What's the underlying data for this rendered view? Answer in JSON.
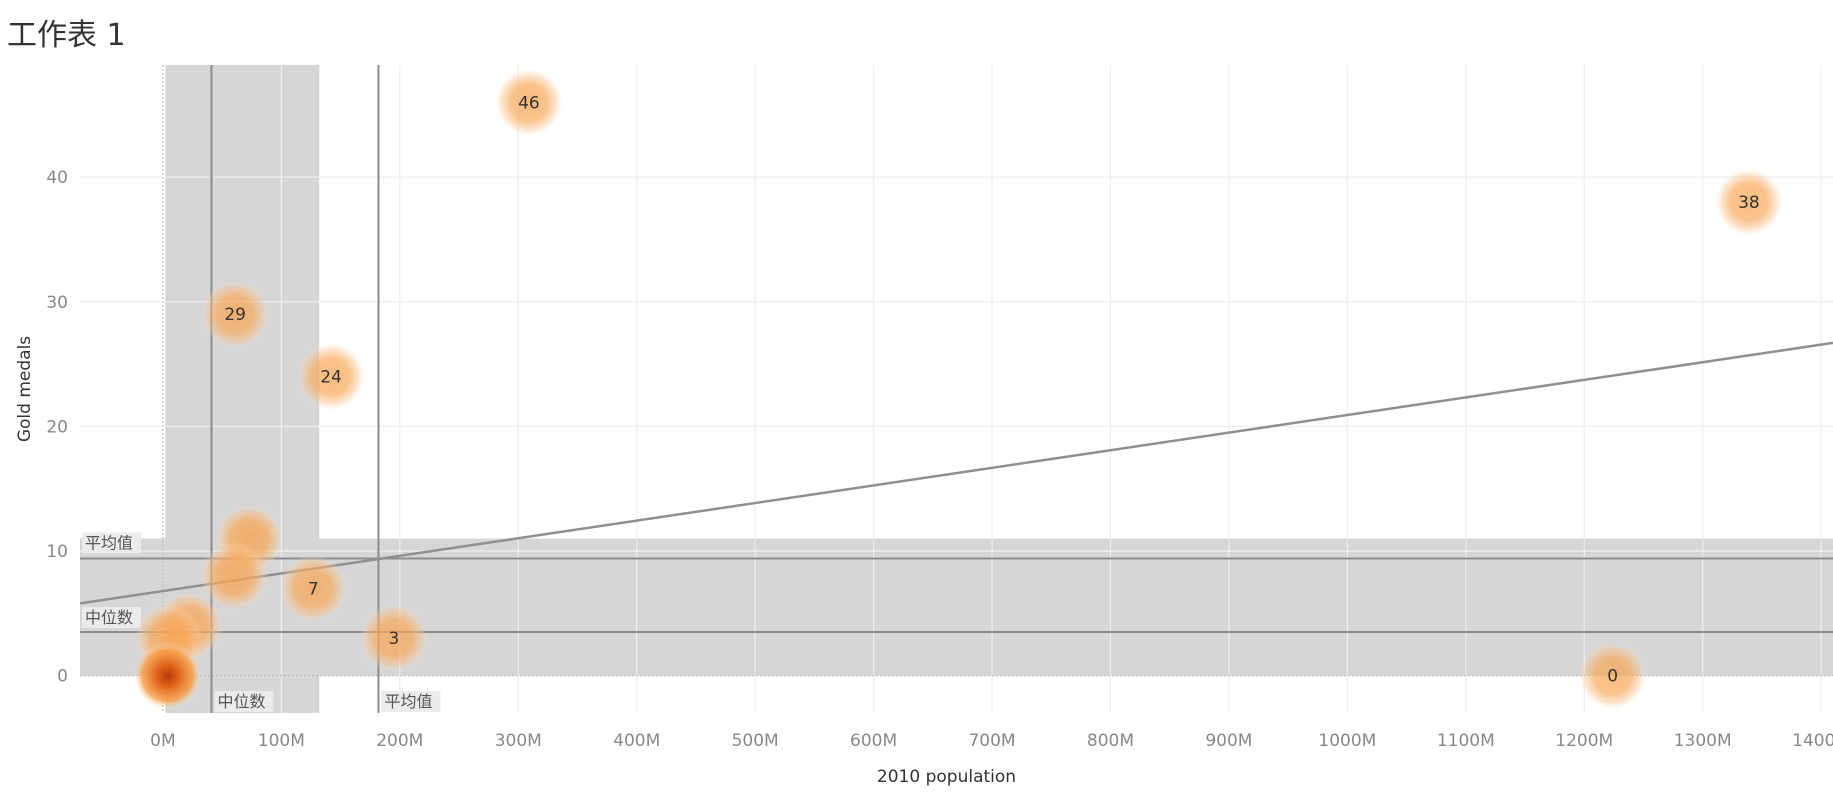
{
  "sheet_title": "工作表 1",
  "chart_data": {
    "type": "scatter",
    "title": "工作表 1",
    "xlabel": "2010 population",
    "ylabel": "Gold medals",
    "xlim": [
      -70,
      1410
    ],
    "ylim": [
      -3,
      49
    ],
    "x_unit": "M",
    "x_ticks": [
      0,
      100,
      200,
      300,
      400,
      500,
      600,
      700,
      800,
      900,
      1000,
      1100,
      1200,
      1300,
      1400
    ],
    "x_tick_labels": [
      "0M",
      "100M",
      "200M",
      "300M",
      "400M",
      "500M",
      "600M",
      "700M",
      "800M",
      "900M",
      "1000M",
      "1100M",
      "1200M",
      "1300M",
      "1400M"
    ],
    "y_ticks": [
      0,
      10,
      20,
      30,
      40
    ],
    "y_tick_labels": [
      "0",
      "10",
      "20",
      "30",
      "40"
    ],
    "grid": true,
    "points": [
      {
        "x": 309,
        "y": 46,
        "label": "46",
        "heat": 0.35
      },
      {
        "x": 1339,
        "y": 38,
        "label": "38",
        "heat": 0.35
      },
      {
        "x": 61,
        "y": 29,
        "label": "29",
        "heat": 0.35
      },
      {
        "x": 142,
        "y": 24,
        "label": "24",
        "heat": 0.35
      },
      {
        "x": 73,
        "y": 11,
        "label": "",
        "heat": 0.45
      },
      {
        "x": 60,
        "y": 8,
        "label": "",
        "heat": 0.45
      },
      {
        "x": 127,
        "y": 7,
        "label": "7",
        "heat": 0.35
      },
      {
        "x": 22,
        "y": 4,
        "label": "",
        "heat": 0.45
      },
      {
        "x": 5,
        "y": 3,
        "label": "",
        "heat": 0.45
      },
      {
        "x": 195,
        "y": 3,
        "label": "3",
        "heat": 0.35
      },
      {
        "x": 4,
        "y": 0,
        "label": "",
        "heat": 1.0
      },
      {
        "x": 1224,
        "y": 0,
        "label": "0",
        "heat": 0.35
      }
    ],
    "reference_lines": {
      "x_mean": {
        "value": 182,
        "label": "平均值"
      },
      "x_median": {
        "value": 41,
        "label": "中位数"
      },
      "y_mean": {
        "value": 9.4,
        "label": "平均值"
      },
      "y_median": {
        "value": 3.5,
        "label": "中位数"
      }
    },
    "distribution_bands": {
      "x": {
        "from": 2,
        "to": 132
      },
      "y": {
        "from": 0,
        "to": 11
      }
    },
    "trend_line": {
      "x_start": -70,
      "y_start": 5.8,
      "x_end": 1410,
      "y_end": 26.7
    }
  }
}
